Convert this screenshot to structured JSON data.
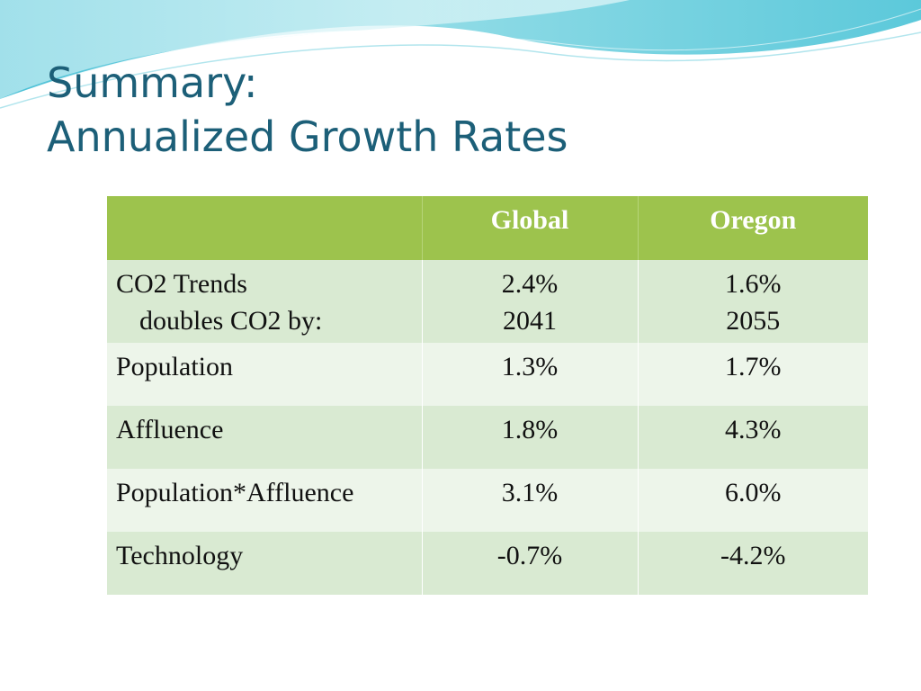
{
  "title": {
    "line1": "Summary:",
    "line2": "Annualized Growth Rates"
  },
  "table": {
    "headers": [
      "",
      "Global",
      "Oregon"
    ],
    "rows": [
      {
        "label": "CO2 Trends",
        "sublabel": "doubles CO2 by:",
        "global": "2.4%",
        "global_sub": "2041",
        "oregon": "1.6%",
        "oregon_sub": "2055"
      },
      {
        "label": "Population",
        "global": "1.3%",
        "oregon": "1.7%"
      },
      {
        "label": "Affluence",
        "global": "1.8%",
        "oregon": "4.3%"
      },
      {
        "label": "Population*Affluence",
        "global": "3.1%",
        "oregon": "6.0%"
      },
      {
        "label": "Technology",
        "global": "-0.7%",
        "oregon": "-4.2%"
      }
    ]
  },
  "colors": {
    "title": "#1c5f78",
    "header_bg": "#9dc34d",
    "row_dark": "#d9ead2",
    "row_light": "#edf5ea",
    "wave": "#5cc8d8"
  }
}
